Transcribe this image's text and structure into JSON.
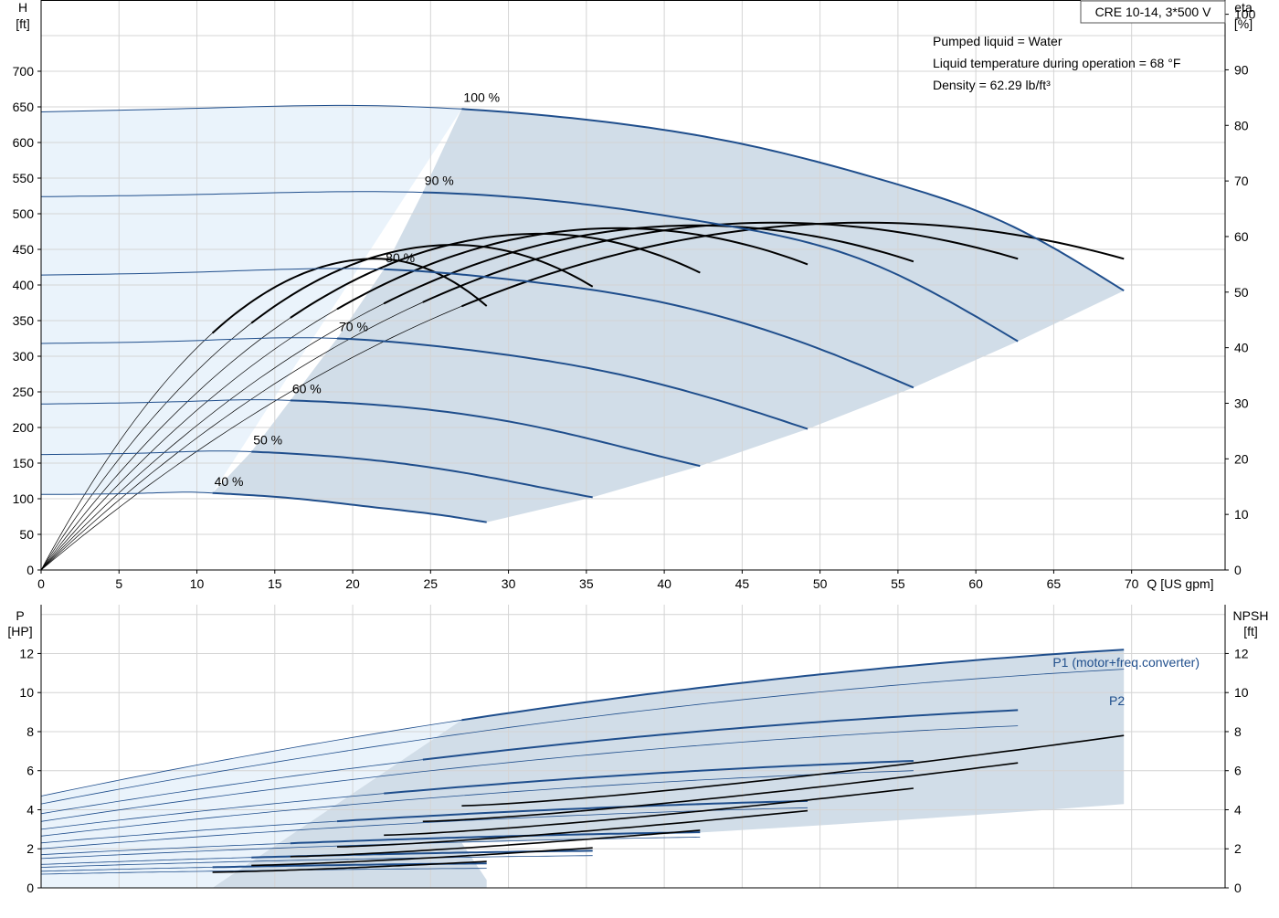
{
  "chart_data": [
    {
      "type": "line",
      "name": "pump-curve",
      "x_axis": {
        "label": "Q [US gpm]",
        "range": [
          0,
          76
        ],
        "ticks": [
          0,
          5,
          10,
          15,
          20,
          25,
          30,
          35,
          40,
          45,
          50,
          55,
          60,
          65,
          70
        ]
      },
      "y_axis": {
        "label_top": "H",
        "label_unit": "[ft]",
        "range": [
          0,
          800
        ],
        "ticks": [
          0,
          50,
          100,
          150,
          200,
          250,
          300,
          350,
          400,
          450,
          500,
          550,
          600,
          650,
          700
        ]
      },
      "y2_axis": {
        "label_top": "eta",
        "label_unit": "[%]",
        "range": [
          0,
          100
        ],
        "ticks": [
          0,
          10,
          20,
          30,
          40,
          50,
          60,
          70,
          80,
          90,
          100
        ]
      },
      "legend_box": "CRE 10-14, 3*500 V",
      "annotations": [
        "Pumped liquid = Water",
        "Liquid temperature during operation = 68 °F",
        "Density = 62.29 lb/ft³"
      ],
      "colors": {
        "head": "#1f4e8c",
        "efficiency": "#000000",
        "envelope": "#d1dde8",
        "low_flow_zone": "#eaf3fb",
        "grid": "#d4d4d4"
      },
      "grid": true,
      "head_curves": [
        {
          "speed": "100 %",
          "x": [
            0,
            10,
            20,
            27,
            35,
            45,
            55,
            62,
            69.5
          ],
          "h": [
            643,
            648,
            652,
            647,
            632,
            598,
            541,
            486,
            392
          ],
          "xs": 27
        },
        {
          "speed": "90 %",
          "x": [
            0,
            10,
            20,
            24.5,
            33,
            43,
            53,
            62.7
          ],
          "h": [
            524,
            527,
            531,
            530,
            518,
            487,
            433,
            321
          ],
          "xs": 24.5
        },
        {
          "speed": "80 %",
          "x": [
            0,
            10,
            18,
            22,
            30,
            40,
            50,
            56
          ],
          "h": [
            414,
            418,
            423,
            422,
            408,
            375,
            310,
            256
          ],
          "xs": 22
        },
        {
          "speed": "70 %",
          "x": [
            0,
            10,
            16,
            19,
            27,
            37,
            46,
            49.2
          ],
          "h": [
            318,
            322,
            326,
            325,
            310,
            275,
            221,
            198
          ],
          "xs": 19
        },
        {
          "speed": "60 %",
          "x": [
            0,
            10,
            14,
            16,
            24,
            32,
            40,
            42.3
          ],
          "h": [
            233,
            237,
            239,
            238,
            227,
            200,
            158,
            146
          ],
          "xs": 16
        },
        {
          "speed": "50 %",
          "x": [
            0,
            8,
            12,
            13.5,
            20,
            27,
            33,
            35.4
          ],
          "h": [
            162,
            165,
            167,
            166,
            157,
            137,
            112,
            102
          ],
          "xs": 13.5
        },
        {
          "speed": "40 %",
          "x": [
            0,
            7,
            10,
            11,
            16,
            21,
            26,
            28.6
          ],
          "h": [
            106,
            108,
            109,
            108,
            101,
            89,
            76,
            67
          ],
          "xs": 11
        }
      ],
      "efficiency_curves": [
        {
          "max_x": 69.5,
          "peak_x": 53,
          "peak_eta": 62.5,
          "end_eta": 56
        },
        {
          "max_x": 62.7,
          "peak_x": 47,
          "peak_eta": 62.5,
          "end_eta": 56
        },
        {
          "max_x": 56,
          "peak_x": 42,
          "peak_eta": 62,
          "end_eta": 55.5
        },
        {
          "max_x": 49.2,
          "peak_x": 37,
          "peak_eta": 61.5,
          "end_eta": 55
        },
        {
          "max_x": 42.3,
          "peak_x": 32,
          "peak_eta": 60.5,
          "end_eta": 53.5
        },
        {
          "max_x": 35.4,
          "peak_x": 26.5,
          "peak_eta": 58.5,
          "end_eta": 51
        },
        {
          "max_x": 28.6,
          "peak_x": 21.5,
          "peak_eta": 56,
          "end_eta": 47.5
        }
      ]
    },
    {
      "type": "line",
      "name": "power-npsh-curve",
      "x_axis": {
        "range": [
          0,
          76
        ]
      },
      "y_axis": {
        "label_top": "P",
        "label_unit": "[HP]",
        "range": [
          0,
          14.5
        ],
        "ticks": [
          0,
          2,
          4,
          6,
          8,
          10,
          12
        ]
      },
      "y2_axis": {
        "label_top": "NPSH",
        "label_unit": "[ft]",
        "range": [
          0,
          14.5
        ],
        "ticks": [
          0,
          2,
          4,
          6,
          8,
          10,
          12
        ]
      },
      "series_labels": [
        "P1 (motor+freq.converter)",
        "P2"
      ],
      "power_curves": [
        {
          "max_x": 69.5,
          "xs": 27,
          "p1_0": 4.7,
          "p1_end": 12.2,
          "p2_0": 4.3,
          "p2_end": 11.2
        },
        {
          "max_x": 62.7,
          "xs": 24.5,
          "p1_0": 3.8,
          "p1_end": 9.1,
          "p2_0": 3.4,
          "p2_end": 8.3
        },
        {
          "max_x": 56,
          "xs": 22,
          "p1_0": 3.0,
          "p1_end": 6.5,
          "p2_0": 2.65,
          "p2_end": 6.0
        },
        {
          "max_x": 49.2,
          "xs": 19,
          "p1_0": 2.3,
          "p1_end": 4.45,
          "p2_0": 2.0,
          "p2_end": 4.1
        },
        {
          "max_x": 42.3,
          "xs": 16,
          "p1_0": 1.7,
          "p1_end": 2.85,
          "p2_0": 1.5,
          "p2_end": 2.6
        },
        {
          "max_x": 35.4,
          "xs": 13.5,
          "p1_0": 1.2,
          "p1_end": 1.9,
          "p2_0": 1.05,
          "p2_end": 1.65
        },
        {
          "max_x": 28.6,
          "xs": 11,
          "p1_0": 0.85,
          "p1_end": 1.25,
          "p2_0": 0.7,
          "p2_end": 1.0
        }
      ],
      "npsh_curves": [
        {
          "x0": 27,
          "x1": 69.5,
          "n0": 4.2,
          "n1": 7.8
        },
        {
          "x0": 24.5,
          "x1": 62.7,
          "n0": 3.4,
          "n1": 6.4
        },
        {
          "x0": 22,
          "x1": 56,
          "n0": 2.7,
          "n1": 5.1
        },
        {
          "x0": 19,
          "x1": 49.2,
          "n0": 2.1,
          "n1": 3.95
        },
        {
          "x0": 16,
          "x1": 42.3,
          "n0": 1.6,
          "n1": 2.95
        },
        {
          "x0": 13.5,
          "x1": 35.4,
          "n0": 1.15,
          "n1": 2.05
        },
        {
          "x0": 11,
          "x1": 28.6,
          "n0": 0.8,
          "n1": 1.35
        }
      ]
    }
  ]
}
